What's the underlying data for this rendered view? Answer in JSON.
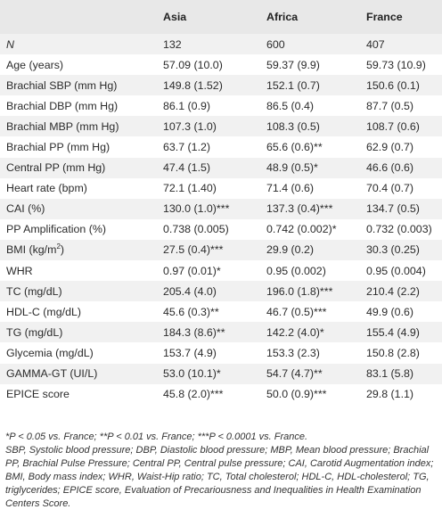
{
  "columns": [
    "",
    "Asia",
    "Africa",
    "France"
  ],
  "rows": [
    {
      "label": "N",
      "asia": "132",
      "africa": "600",
      "france": "407"
    },
    {
      "label": "Age (years)",
      "asia": "57.09 (10.0)",
      "africa": "59.37 (9.9)",
      "france": "59.73 (10.9)"
    },
    {
      "label": "Brachial SBP (mm Hg)",
      "asia": "149.8 (1.52)",
      "africa": "152.1 (0.7)",
      "france": "150.6 (0.1)"
    },
    {
      "label": "Brachial DBP (mm Hg)",
      "asia": "86.1 (0.9)",
      "africa": "86.5 (0.4)",
      "france": "87.7 (0.5)"
    },
    {
      "label": "Brachial MBP (mm Hg)",
      "asia": "107.3 (1.0)",
      "africa": "108.3 (0.5)",
      "france": "108.7 (0.6)"
    },
    {
      "label": "Brachial PP (mm Hg)",
      "asia": "63.7 (1.2)",
      "africa": "65.6 (0.6)**",
      "france": "62.9 (0.7)"
    },
    {
      "label": "Central PP (mm Hg)",
      "asia": "47.4 (1.5)",
      "africa": "48.9 (0.5)*",
      "france": "46.6 (0.6)"
    },
    {
      "label": "Heart rate (bpm)",
      "asia": "72.1 (1.40)",
      "africa": "71.4 (0.6)",
      "france": "70.4 (0.7)"
    },
    {
      "label": "CAI (%)",
      "asia": "130.0 (1.0)***",
      "africa": "137.3 (0.4)***",
      "france": "134.7 (0.5)"
    },
    {
      "label": "PP Amplification (%)",
      "asia": "0.738 (0.005)",
      "africa": "0.742 (0.002)*",
      "france": "0.732 (0.003)"
    },
    {
      "label_main": "BMI (kg/m",
      "label_sup": "2",
      "label_end": ")",
      "asia": "27.5 (0.4)***",
      "africa": "29.9 (0.2)",
      "france": "30.3 (0.25)"
    },
    {
      "label": "WHR",
      "asia": "0.97 (0.01)*",
      "africa": "0.95 (0.002)",
      "france": "0.95 (0.004)"
    },
    {
      "label": "TC (mg/dL)",
      "asia": "205.4 (4.0)",
      "africa": "196.0 (1.8)***",
      "france": "210.4 (2.2)"
    },
    {
      "label": "HDL-C (mg/dL)",
      "asia": "45.6 (0.3)**",
      "africa": "46.7 (0.5)***",
      "france": "49.9 (0.6)"
    },
    {
      "label": "TG (mg/dL)",
      "asia": "184.3 (8.6)**",
      "africa": "142.2 (4.0)*",
      "france": "155.4 (4.9)"
    },
    {
      "label": "Glycemia (mg/dL)",
      "asia": "153.7 (4.9)",
      "africa": "153.3 (2.3)",
      "france": "150.8 (2.8)"
    },
    {
      "label": "GAMMA-GT (UI/L)",
      "asia": "53.0 (10.1)*",
      "africa": "54.7 (4.7)**",
      "france": "83.1 (5.8)"
    },
    {
      "label": "EPICE score",
      "asia": "45.8 (2.0)***",
      "africa": "50.0 (0.9)***",
      "france": "29.8 (1.1)"
    }
  ],
  "notes": {
    "significance": "*P < 0.05 vs. France; **P < 0.01 vs. France; ***P < 0.0001 vs. France.",
    "abbreviations": "SBP, Systolic blood pressure; DBP, Diastolic blood pressure; MBP, Mean blood pressure; Brachial PP, Brachial Pulse Pressure; Central PP, Central pulse pressure; CAI, Carotid Augmentation index; BMI, Body mass index; WHR, Waist-Hip ratio; TC, Total cholesterol; HDL-C, HDL-cholesterol; TG, triglycerides; EPICE score, Evaluation of Precariousness and Inequalities in Health Examination Centers Score."
  }
}
